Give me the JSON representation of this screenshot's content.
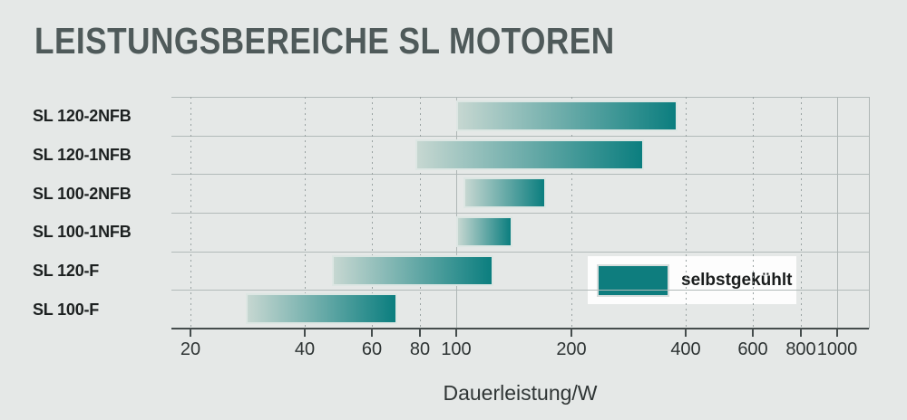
{
  "page": {
    "title": "LEISTUNGSBEREICHE SL MOTOREN"
  },
  "legend": {
    "label": "selbstgekühlt",
    "swatch_color": "#0e7d7e"
  },
  "colors": {
    "background": "#e5e8e7",
    "title": "#4f5a5a",
    "axis": "#454d4d",
    "gridline": "#b2bab9",
    "gridline_dotted": "#99a2a2",
    "bar_gradient_start": "#c6d7d1",
    "bar_gradient_end": "#0b7e7f"
  },
  "chart_data": {
    "type": "bar",
    "subtype": "horizontal-range-bars",
    "title": "LEISTUNGSBEREICHE SL MOTOREN",
    "xlabel": "Dauerleistung/W",
    "ylabel": "",
    "x_scale": "log",
    "xlim": [
      18,
      1100
    ],
    "x_ticks": [
      20,
      40,
      60,
      80,
      100,
      200,
      400,
      600,
      800,
      1000
    ],
    "solid_gridline_ticks": [
      100,
      1000
    ],
    "grid": true,
    "legend_position": "inside-right",
    "categories": [
      "SL 120-2NFB",
      "SL 120-1NFB",
      "SL 100-2NFB",
      "SL 100-1NFB",
      "SL 120-F",
      "SL 100-F"
    ],
    "series": [
      {
        "name": "selbstgekühlt",
        "unit": "W",
        "ranges": [
          {
            "category": "SL 120-2NFB",
            "min": 100,
            "max": 380
          },
          {
            "category": "SL 120-1NFB",
            "min": 78,
            "max": 310
          },
          {
            "category": "SL 100-2NFB",
            "min": 104,
            "max": 172
          },
          {
            "category": "SL 100-1NFB",
            "min": 100,
            "max": 140
          },
          {
            "category": "SL 120-F",
            "min": 47,
            "max": 125
          },
          {
            "category": "SL 100-F",
            "min": 28,
            "max": 70
          }
        ]
      }
    ]
  }
}
